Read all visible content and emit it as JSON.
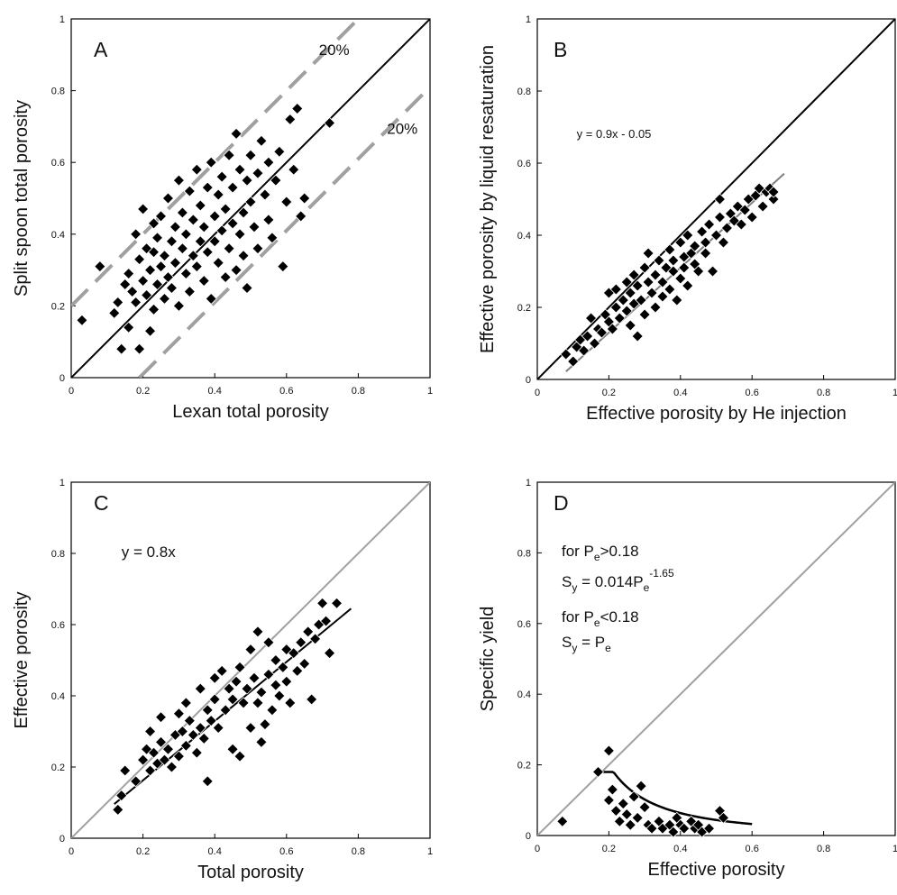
{
  "colors": {
    "black": "#000000",
    "gray": "#a0a0a0",
    "darkgray": "#7f7f7f"
  },
  "chart_data": [
    {
      "type": "scatter",
      "panel": "A",
      "xlabel": "Lexan total porosity",
      "ylabel": "Split spoon total porosity",
      "xlim": [
        0,
        1
      ],
      "ylim": [
        0,
        1
      ],
      "xticks": [
        "0",
        "0.2",
        "0.4",
        "0.6",
        "0.8",
        "1"
      ],
      "yticks": [
        "0",
        "0.2",
        "0.4",
        "0.6",
        "0.8",
        "1"
      ],
      "grid": false,
      "annotations": [
        {
          "text": "20%",
          "x": 0.69,
          "y": 0.9
        },
        {
          "text": "20%",
          "x": 0.88,
          "y": 0.68
        }
      ],
      "lines": [
        {
          "kind": "solid",
          "color": "black",
          "points": [
            [
              0,
              0
            ],
            [
              1,
              1
            ]
          ]
        },
        {
          "kind": "dashed",
          "color": "gray",
          "points": [
            [
              0,
              0.2
            ],
            [
              0.8,
              1.0
            ]
          ]
        },
        {
          "kind": "dashed",
          "color": "gray",
          "points": [
            [
              0.19,
              0
            ],
            [
              1.0,
              0.81
            ]
          ]
        }
      ],
      "points": [
        [
          0.03,
          0.16
        ],
        [
          0.08,
          0.31
        ],
        [
          0.12,
          0.18
        ],
        [
          0.13,
          0.21
        ],
        [
          0.14,
          0.08
        ],
        [
          0.15,
          0.26
        ],
        [
          0.16,
          0.29
        ],
        [
          0.16,
          0.14
        ],
        [
          0.17,
          0.24
        ],
        [
          0.18,
          0.4
        ],
        [
          0.18,
          0.21
        ],
        [
          0.19,
          0.08
        ],
        [
          0.19,
          0.33
        ],
        [
          0.2,
          0.47
        ],
        [
          0.2,
          0.27
        ],
        [
          0.21,
          0.36
        ],
        [
          0.21,
          0.23
        ],
        [
          0.22,
          0.13
        ],
        [
          0.22,
          0.3
        ],
        [
          0.23,
          0.43
        ],
        [
          0.23,
          0.35
        ],
        [
          0.23,
          0.19
        ],
        [
          0.24,
          0.26
        ],
        [
          0.24,
          0.39
        ],
        [
          0.25,
          0.31
        ],
        [
          0.25,
          0.45
        ],
        [
          0.26,
          0.22
        ],
        [
          0.26,
          0.34
        ],
        [
          0.27,
          0.28
        ],
        [
          0.27,
          0.5
        ],
        [
          0.28,
          0.38
        ],
        [
          0.28,
          0.25
        ],
        [
          0.29,
          0.42
        ],
        [
          0.29,
          0.32
        ],
        [
          0.3,
          0.55
        ],
        [
          0.3,
          0.2
        ],
        [
          0.31,
          0.36
        ],
        [
          0.31,
          0.46
        ],
        [
          0.32,
          0.29
        ],
        [
          0.32,
          0.4
        ],
        [
          0.33,
          0.52
        ],
        [
          0.33,
          0.24
        ],
        [
          0.34,
          0.34
        ],
        [
          0.34,
          0.44
        ],
        [
          0.35,
          0.58
        ],
        [
          0.35,
          0.31
        ],
        [
          0.36,
          0.38
        ],
        [
          0.36,
          0.48
        ],
        [
          0.37,
          0.27
        ],
        [
          0.37,
          0.42
        ],
        [
          0.38,
          0.53
        ],
        [
          0.38,
          0.35
        ],
        [
          0.39,
          0.6
        ],
        [
          0.39,
          0.22
        ],
        [
          0.4,
          0.45
        ],
        [
          0.4,
          0.38
        ],
        [
          0.41,
          0.32
        ],
        [
          0.41,
          0.51
        ],
        [
          0.42,
          0.56
        ],
        [
          0.42,
          0.41
        ],
        [
          0.43,
          0.28
        ],
        [
          0.43,
          0.47
        ],
        [
          0.44,
          0.62
        ],
        [
          0.44,
          0.36
        ],
        [
          0.45,
          0.43
        ],
        [
          0.45,
          0.53
        ],
        [
          0.46,
          0.68
        ],
        [
          0.46,
          0.3
        ],
        [
          0.47,
          0.4
        ],
        [
          0.47,
          0.58
        ],
        [
          0.48,
          0.46
        ],
        [
          0.48,
          0.34
        ],
        [
          0.49,
          0.55
        ],
        [
          0.49,
          0.25
        ],
        [
          0.5,
          0.49
        ],
        [
          0.5,
          0.62
        ],
        [
          0.51,
          0.42
        ],
        [
          0.52,
          0.57
        ],
        [
          0.52,
          0.36
        ],
        [
          0.53,
          0.66
        ],
        [
          0.54,
          0.51
        ],
        [
          0.55,
          0.6
        ],
        [
          0.55,
          0.44
        ],
        [
          0.56,
          0.39
        ],
        [
          0.57,
          0.55
        ],
        [
          0.58,
          0.63
        ],
        [
          0.59,
          0.31
        ],
        [
          0.6,
          0.49
        ],
        [
          0.61,
          0.72
        ],
        [
          0.62,
          0.58
        ],
        [
          0.63,
          0.75
        ],
        [
          0.64,
          0.45
        ],
        [
          0.65,
          0.5
        ],
        [
          0.72,
          0.71
        ]
      ]
    },
    {
      "type": "scatter",
      "panel": "B",
      "xlabel": "Effective porosity by He injection",
      "ylabel": "Effective porosity by liquid resaturation",
      "xlim": [
        0,
        1
      ],
      "ylim": [
        0,
        1
      ],
      "xticks": [
        "0",
        "0.2",
        "0.4",
        "0.6",
        "0.8",
        "1"
      ],
      "yticks": [
        "0",
        "0.2",
        "0.4",
        "0.6",
        "0.8",
        "1"
      ],
      "grid": false,
      "annotations": [
        {
          "text": "y = 0.9x - 0.05",
          "x": 0.11,
          "y": 0.67
        }
      ],
      "lines": [
        {
          "kind": "solid",
          "color": "black",
          "points": [
            [
              0,
              0
            ],
            [
              1,
              1
            ]
          ]
        },
        {
          "kind": "solid",
          "color": "darkgray",
          "points": [
            [
              0.08,
              0.022
            ],
            [
              0.69,
              0.571
            ]
          ]
        }
      ],
      "points": [
        [
          0.08,
          0.07
        ],
        [
          0.1,
          0.05
        ],
        [
          0.11,
          0.09
        ],
        [
          0.12,
          0.11
        ],
        [
          0.13,
          0.08
        ],
        [
          0.14,
          0.12
        ],
        [
          0.15,
          0.17
        ],
        [
          0.16,
          0.1
        ],
        [
          0.17,
          0.14
        ],
        [
          0.18,
          0.13
        ],
        [
          0.19,
          0.18
        ],
        [
          0.2,
          0.16
        ],
        [
          0.2,
          0.24
        ],
        [
          0.21,
          0.14
        ],
        [
          0.22,
          0.2
        ],
        [
          0.22,
          0.25
        ],
        [
          0.23,
          0.17
        ],
        [
          0.24,
          0.22
        ],
        [
          0.25,
          0.27
        ],
        [
          0.25,
          0.19
        ],
        [
          0.26,
          0.15
        ],
        [
          0.26,
          0.24
        ],
        [
          0.27,
          0.21
        ],
        [
          0.27,
          0.29
        ],
        [
          0.28,
          0.12
        ],
        [
          0.28,
          0.26
        ],
        [
          0.29,
          0.22
        ],
        [
          0.3,
          0.31
        ],
        [
          0.3,
          0.18
        ],
        [
          0.31,
          0.27
        ],
        [
          0.31,
          0.35
        ],
        [
          0.32,
          0.24
        ],
        [
          0.33,
          0.29
        ],
        [
          0.33,
          0.2
        ],
        [
          0.34,
          0.33
        ],
        [
          0.35,
          0.27
        ],
        [
          0.35,
          0.23
        ],
        [
          0.36,
          0.31
        ],
        [
          0.37,
          0.36
        ],
        [
          0.37,
          0.25
        ],
        [
          0.38,
          0.3
        ],
        [
          0.38,
          0.33
        ],
        [
          0.39,
          0.22
        ],
        [
          0.4,
          0.38
        ],
        [
          0.4,
          0.28
        ],
        [
          0.41,
          0.34
        ],
        [
          0.41,
          0.31
        ],
        [
          0.42,
          0.4
        ],
        [
          0.42,
          0.26
        ],
        [
          0.43,
          0.35
        ],
        [
          0.44,
          0.32
        ],
        [
          0.44,
          0.37
        ],
        [
          0.45,
          0.3
        ],
        [
          0.46,
          0.41
        ],
        [
          0.47,
          0.35
        ],
        [
          0.47,
          0.38
        ],
        [
          0.48,
          0.43
        ],
        [
          0.49,
          0.3
        ],
        [
          0.5,
          0.4
        ],
        [
          0.51,
          0.45
        ],
        [
          0.51,
          0.5
        ],
        [
          0.52,
          0.38
        ],
        [
          0.53,
          0.42
        ],
        [
          0.54,
          0.46
        ],
        [
          0.55,
          0.44
        ],
        [
          0.56,
          0.48
        ],
        [
          0.57,
          0.43
        ],
        [
          0.58,
          0.47
        ],
        [
          0.59,
          0.5
        ],
        [
          0.6,
          0.45
        ],
        [
          0.61,
          0.51
        ],
        [
          0.62,
          0.53
        ],
        [
          0.63,
          0.48
        ],
        [
          0.64,
          0.52
        ],
        [
          0.65,
          0.53
        ],
        [
          0.66,
          0.5
        ],
        [
          0.66,
          0.52
        ]
      ]
    },
    {
      "type": "scatter",
      "panel": "C",
      "xlabel": "Total porosity",
      "ylabel": "Effective porosity",
      "xlim": [
        0,
        1
      ],
      "ylim": [
        0,
        1
      ],
      "xticks": [
        "0",
        "0.2",
        "0.4",
        "0.6",
        "0.8",
        "1"
      ],
      "yticks": [
        "0",
        "0.2",
        "0.4",
        "0.6",
        "0.8",
        "1"
      ],
      "grid": false,
      "annotations": [
        {
          "text": "y = 0.8x",
          "x": 0.14,
          "y": 0.79
        }
      ],
      "lines": [
        {
          "kind": "solid",
          "color": "gray",
          "points": [
            [
              0,
              0
            ],
            [
              1,
              1
            ]
          ]
        },
        {
          "kind": "solid",
          "color": "black",
          "points": [
            [
              0.12,
              0.096
            ],
            [
              0.78,
              0.645
            ]
          ]
        }
      ],
      "points": [
        [
          0.13,
          0.08
        ],
        [
          0.14,
          0.12
        ],
        [
          0.15,
          0.19
        ],
        [
          0.18,
          0.16
        ],
        [
          0.2,
          0.22
        ],
        [
          0.21,
          0.25
        ],
        [
          0.22,
          0.3
        ],
        [
          0.22,
          0.19
        ],
        [
          0.23,
          0.24
        ],
        [
          0.24,
          0.21
        ],
        [
          0.25,
          0.34
        ],
        [
          0.25,
          0.27
        ],
        [
          0.26,
          0.22
        ],
        [
          0.27,
          0.25
        ],
        [
          0.28,
          0.2
        ],
        [
          0.29,
          0.29
        ],
        [
          0.3,
          0.23
        ],
        [
          0.3,
          0.35
        ],
        [
          0.31,
          0.3
        ],
        [
          0.32,
          0.26
        ],
        [
          0.32,
          0.38
        ],
        [
          0.33,
          0.33
        ],
        [
          0.34,
          0.29
        ],
        [
          0.35,
          0.24
        ],
        [
          0.36,
          0.42
        ],
        [
          0.36,
          0.31
        ],
        [
          0.37,
          0.28
        ],
        [
          0.38,
          0.16
        ],
        [
          0.38,
          0.36
        ],
        [
          0.39,
          0.33
        ],
        [
          0.4,
          0.45
        ],
        [
          0.4,
          0.39
        ],
        [
          0.41,
          0.31
        ],
        [
          0.42,
          0.47
        ],
        [
          0.43,
          0.36
        ],
        [
          0.44,
          0.42
        ],
        [
          0.45,
          0.25
        ],
        [
          0.45,
          0.39
        ],
        [
          0.46,
          0.44
        ],
        [
          0.47,
          0.23
        ],
        [
          0.47,
          0.48
        ],
        [
          0.48,
          0.38
        ],
        [
          0.49,
          0.42
        ],
        [
          0.5,
          0.31
        ],
        [
          0.5,
          0.53
        ],
        [
          0.51,
          0.45
        ],
        [
          0.52,
          0.38
        ],
        [
          0.52,
          0.58
        ],
        [
          0.53,
          0.27
        ],
        [
          0.53,
          0.41
        ],
        [
          0.54,
          0.32
        ],
        [
          0.55,
          0.46
        ],
        [
          0.55,
          0.55
        ],
        [
          0.56,
          0.36
        ],
        [
          0.57,
          0.5
        ],
        [
          0.57,
          0.43
        ],
        [
          0.58,
          0.4
        ],
        [
          0.59,
          0.48
        ],
        [
          0.6,
          0.53
        ],
        [
          0.6,
          0.44
        ],
        [
          0.61,
          0.38
        ],
        [
          0.62,
          0.52
        ],
        [
          0.63,
          0.47
        ],
        [
          0.64,
          0.55
        ],
        [
          0.65,
          0.49
        ],
        [
          0.66,
          0.58
        ],
        [
          0.67,
          0.39
        ],
        [
          0.68,
          0.56
        ],
        [
          0.69,
          0.6
        ],
        [
          0.7,
          0.66
        ],
        [
          0.71,
          0.61
        ],
        [
          0.72,
          0.52
        ],
        [
          0.74,
          0.66
        ]
      ]
    },
    {
      "type": "scatter",
      "panel": "D",
      "xlabel": "Effective porosity",
      "ylabel": "Specific yield",
      "xlim": [
        0,
        1
      ],
      "ylim": [
        0,
        1
      ],
      "xticks": [
        "0",
        "0.2",
        "0.4",
        "0.6",
        "0.8",
        "1"
      ],
      "yticks": [
        "0",
        "0.2",
        "0.4",
        "0.6",
        "0.8",
        "1"
      ],
      "grid": false,
      "annotations": {
        "line1": "for P",
        "line1_sub": "e",
        "line1_rest": ">0.18",
        "line2": "S",
        "line2_sub": "y",
        "line2_rest": " = 0.014P",
        "line2_sub2": "e",
        "line2_sup": "-1.65",
        "line3": "for P",
        "line3_sub": "e",
        "line3_rest": "<0.18",
        "line4": "S",
        "line4_sub": "y",
        "line4_rest": " = P",
        "line4_sub2": "e"
      },
      "curve": {
        "kind": "solid",
        "color": "black",
        "coef": 0.014,
        "exp": -1.65,
        "threshold": 0.18,
        "x_end": 0.6
      },
      "lines": [
        {
          "kind": "solid",
          "color": "gray",
          "points": [
            [
              0,
              0
            ],
            [
              1,
              1
            ]
          ]
        }
      ],
      "points": [
        [
          0.07,
          0.04
        ],
        [
          0.17,
          0.18
        ],
        [
          0.2,
          0.24
        ],
        [
          0.2,
          0.1
        ],
        [
          0.21,
          0.13
        ],
        [
          0.22,
          0.07
        ],
        [
          0.23,
          0.04
        ],
        [
          0.24,
          0.09
        ],
        [
          0.25,
          0.06
        ],
        [
          0.26,
          0.03
        ],
        [
          0.27,
          0.11
        ],
        [
          0.28,
          0.05
        ],
        [
          0.29,
          0.14
        ],
        [
          0.3,
          0.08
        ],
        [
          0.31,
          0.03
        ],
        [
          0.32,
          0.02
        ],
        [
          0.34,
          0.04
        ],
        [
          0.35,
          0.02
        ],
        [
          0.37,
          0.03
        ],
        [
          0.38,
          0.01
        ],
        [
          0.39,
          0.05
        ],
        [
          0.4,
          0.03
        ],
        [
          0.41,
          0.02
        ],
        [
          0.43,
          0.04
        ],
        [
          0.44,
          0.02
        ],
        [
          0.45,
          0.03
        ],
        [
          0.46,
          0.01
        ],
        [
          0.48,
          0.02
        ],
        [
          0.51,
          0.07
        ],
        [
          0.52,
          0.05
        ]
      ]
    }
  ]
}
